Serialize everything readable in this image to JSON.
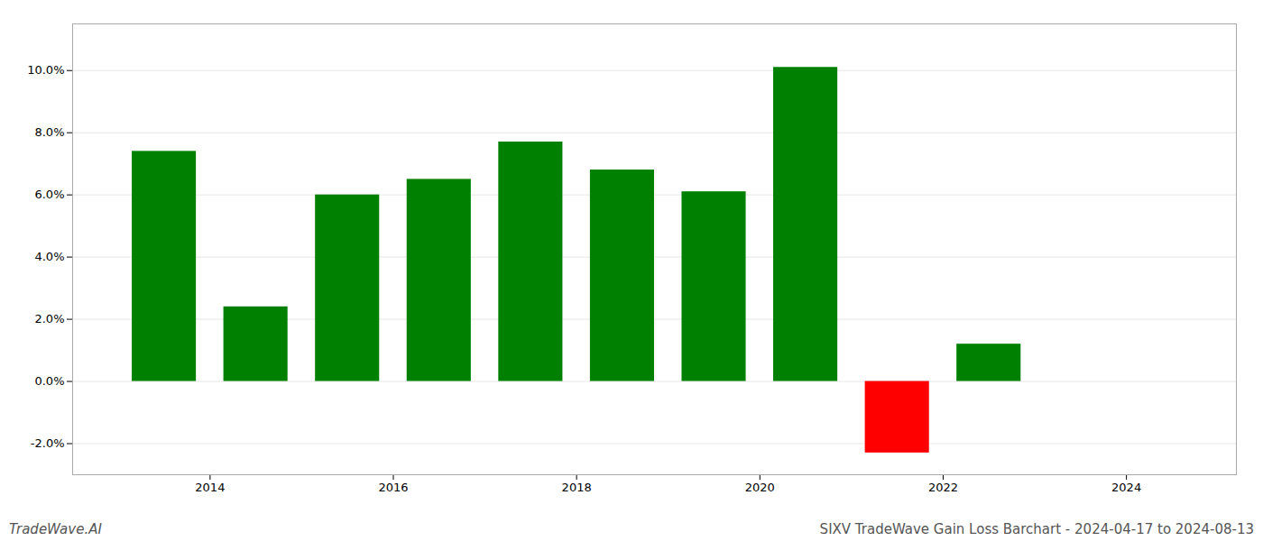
{
  "chart_data": {
    "type": "bar",
    "title": "SIXV TradeWave Gain Loss Barchart - 2024-04-17 to 2024-08-13",
    "annotations": [
      "TradeWave.AI"
    ],
    "x": [
      2013.5,
      2014.5,
      2015.5,
      2016.5,
      2017.5,
      2018.5,
      2019.5,
      2020.5,
      2021.5,
      2022.5
    ],
    "values": [
      0.074,
      0.024,
      0.06,
      0.065,
      0.077,
      0.068,
      0.061,
      0.101,
      -0.023,
      0.012
    ],
    "colors": [
      "#008000",
      "#008000",
      "#008000",
      "#008000",
      "#008000",
      "#008000",
      "#008000",
      "#008000",
      "#ff0000",
      "#008000"
    ],
    "xlim": [
      2012.5,
      2025.2
    ],
    "xticks": [
      2014,
      2016,
      2018,
      2020,
      2022,
      2024
    ],
    "ylim": [
      -0.03,
      0.115
    ],
    "yticks": [
      {
        "value": -0.02,
        "label": "-2.0%"
      },
      {
        "value": 0.0,
        "label": "0.0%"
      },
      {
        "value": 0.02,
        "label": "2.0%"
      },
      {
        "value": 0.04,
        "label": "4.0%"
      },
      {
        "value": 0.06,
        "label": "6.0%"
      },
      {
        "value": 0.08,
        "label": "8.0%"
      },
      {
        "value": 0.1,
        "label": "10.0%"
      }
    ],
    "grid": true
  }
}
